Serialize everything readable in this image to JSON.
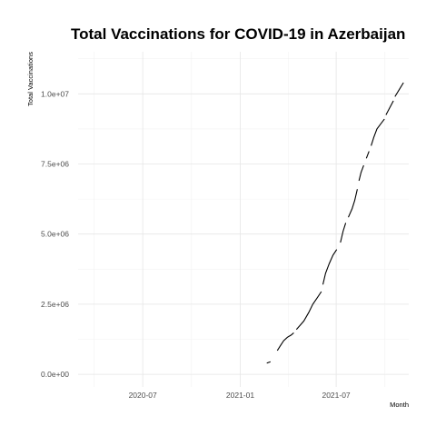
{
  "chart_data": {
    "type": "line",
    "title": "Total Vaccinations for COVID-19 in Azerbaijan",
    "xlabel": "Month",
    "ylabel": "Total Vaccinations",
    "x_ticks": [
      {
        "date": "2020-07-01",
        "label": "2020-07"
      },
      {
        "date": "2021-01-01",
        "label": "2021-01"
      },
      {
        "date": "2021-07-01",
        "label": "2021-07"
      }
    ],
    "y_ticks": [
      {
        "value": 0,
        "label": "0.0e+00"
      },
      {
        "value": 2500000,
        "label": "2.5e+06"
      },
      {
        "value": 5000000,
        "label": "5.0e+06"
      },
      {
        "value": 7500000,
        "label": "7.5e+06"
      },
      {
        "value": 10000000,
        "label": "1.0e+07"
      }
    ],
    "xlim": [
      "2020-03-01",
      "2021-11-15"
    ],
    "ylim": [
      -450000,
      11500000
    ],
    "grid": true,
    "legend": "none",
    "series": [
      {
        "segments": [
          [
            {
              "x": "2021-02-20",
              "y": 400000
            },
            {
              "x": "2021-02-27",
              "y": 450000
            }
          ]
        ]
      },
      {
        "segments": [
          [
            {
              "x": "2021-03-12",
              "y": 850000
            },
            {
              "x": "2021-03-17",
              "y": 1000000
            },
            {
              "x": "2021-03-24",
              "y": 1200000
            },
            {
              "x": "2021-03-31",
              "y": 1320000
            },
            {
              "x": "2021-04-07",
              "y": 1400000
            },
            {
              "x": "2021-04-12",
              "y": 1480000
            }
          ],
          [
            {
              "x": "2021-04-17",
              "y": 1600000
            },
            {
              "x": "2021-04-24",
              "y": 1750000
            },
            {
              "x": "2021-05-01",
              "y": 1900000
            },
            {
              "x": "2021-05-10",
              "y": 2200000
            },
            {
              "x": "2021-05-18",
              "y": 2500000
            },
            {
              "x": "2021-05-27",
              "y": 2750000
            },
            {
              "x": "2021-06-03",
              "y": 2950000
            }
          ],
          [
            {
              "x": "2021-06-06",
              "y": 3200000
            },
            {
              "x": "2021-06-11",
              "y": 3600000
            },
            {
              "x": "2021-06-18",
              "y": 3950000
            },
            {
              "x": "2021-06-25",
              "y": 4250000
            },
            {
              "x": "2021-07-02",
              "y": 4450000
            }
          ],
          [
            {
              "x": "2021-07-09",
              "y": 4700000
            },
            {
              "x": "2021-07-14",
              "y": 5100000
            },
            {
              "x": "2021-07-19",
              "y": 5400000
            }
          ],
          [
            {
              "x": "2021-07-24",
              "y": 5600000
            },
            {
              "x": "2021-07-31",
              "y": 5900000
            },
            {
              "x": "2021-08-05",
              "y": 6200000
            },
            {
              "x": "2021-08-10",
              "y": 6600000
            }
          ],
          [
            {
              "x": "2021-08-13",
              "y": 6900000
            },
            {
              "x": "2021-08-17",
              "y": 7200000
            },
            {
              "x": "2021-08-22",
              "y": 7450000
            }
          ],
          [
            {
              "x": "2021-08-27",
              "y": 7700000
            },
            {
              "x": "2021-09-01",
              "y": 7950000
            }
          ],
          [
            {
              "x": "2021-09-05",
              "y": 8150000
            },
            {
              "x": "2021-09-10",
              "y": 8450000
            },
            {
              "x": "2021-09-16",
              "y": 8750000
            },
            {
              "x": "2021-09-24",
              "y": 8950000
            },
            {
              "x": "2021-09-30",
              "y": 9100000
            }
          ],
          [
            {
              "x": "2021-10-03",
              "y": 9250000
            },
            {
              "x": "2021-10-10",
              "y": 9500000
            },
            {
              "x": "2021-10-17",
              "y": 9750000
            }
          ],
          [
            {
              "x": "2021-10-20",
              "y": 9900000
            },
            {
              "x": "2021-10-28",
              "y": 10150000
            },
            {
              "x": "2021-11-05",
              "y": 10400000
            }
          ]
        ]
      }
    ]
  }
}
